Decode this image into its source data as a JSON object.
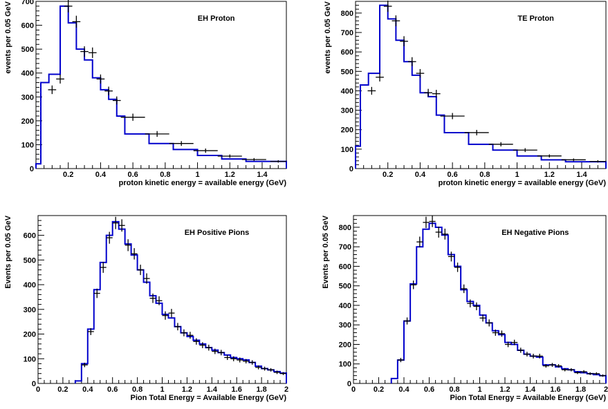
{
  "figure": {
    "background": "#ffffff",
    "model_color": "#0000cc",
    "data_color": "#000000"
  },
  "chart_data": [
    {
      "type": "histogram",
      "title": "EH Proton",
      "xlabel": "proton kinetic energy = available energy (GeV)",
      "ylabel": "events per 0.05 GeV",
      "xlim": [
        0.0,
        1.55
      ],
      "ylim": [
        0,
        700
      ],
      "xticks": [
        0.2,
        0.4,
        0.6,
        0.8,
        1.0,
        1.2,
        1.4
      ],
      "xtick_labels": [
        "0.2",
        "0.4",
        "0.6",
        "0.8",
        "1",
        "1.2",
        "1.4"
      ],
      "yticks": [
        0,
        100,
        200,
        300,
        400,
        500,
        600,
        700
      ],
      "ytick_labels": [
        "0",
        "100",
        "200",
        "300",
        "400",
        "500",
        "600",
        "700"
      ],
      "model_edges": [
        0.0,
        0.03,
        0.08,
        0.15,
        0.2,
        0.25,
        0.3,
        0.35,
        0.4,
        0.45,
        0.5,
        0.55,
        0.7,
        0.85,
        1.0,
        1.15,
        1.3,
        1.55
      ],
      "model_values": [
        20,
        360,
        395,
        680,
        610,
        500,
        455,
        380,
        330,
        290,
        220,
        145,
        105,
        80,
        55,
        40,
        30
      ],
      "data_points": [
        {
          "x": 0.1,
          "y": 330,
          "xerr": 0.025,
          "yerr": 18
        },
        {
          "x": 0.15,
          "y": 375,
          "xerr": 0.025,
          "yerr": 19
        },
        {
          "x": 0.2,
          "y": 680,
          "xerr": 0.025,
          "yerr": 26
        },
        {
          "x": 0.25,
          "y": 615,
          "xerr": 0.025,
          "yerr": 25
        },
        {
          "x": 0.3,
          "y": 490,
          "xerr": 0.025,
          "yerr": 22
        },
        {
          "x": 0.35,
          "y": 485,
          "xerr": 0.025,
          "yerr": 22
        },
        {
          "x": 0.4,
          "y": 375,
          "xerr": 0.025,
          "yerr": 19
        },
        {
          "x": 0.45,
          "y": 325,
          "xerr": 0.025,
          "yerr": 18
        },
        {
          "x": 0.5,
          "y": 285,
          "xerr": 0.025,
          "yerr": 17
        },
        {
          "x": 0.6,
          "y": 215,
          "xerr": 0.075,
          "yerr": 15
        },
        {
          "x": 0.75,
          "y": 145,
          "xerr": 0.075,
          "yerr": 12
        },
        {
          "x": 0.9,
          "y": 105,
          "xerr": 0.075,
          "yerr": 10
        },
        {
          "x": 1.05,
          "y": 75,
          "xerr": 0.075,
          "yerr": 9
        },
        {
          "x": 1.2,
          "y": 52,
          "xerr": 0.075,
          "yerr": 7
        },
        {
          "x": 1.35,
          "y": 38,
          "xerr": 0.075,
          "yerr": 6
        },
        {
          "x": 1.5,
          "y": 30,
          "xerr": 0.05,
          "yerr": 5
        }
      ]
    },
    {
      "type": "histogram",
      "title": "TE Proton",
      "xlabel": "proton kinetic energy = available energy (GeV)",
      "ylabel": "events per 0.05 GeV",
      "xlim": [
        0.0,
        1.55
      ],
      "ylim": [
        0,
        860
      ],
      "xticks": [
        0.2,
        0.4,
        0.6,
        0.8,
        1.0,
        1.2,
        1.4
      ],
      "xtick_labels": [
        "0.2",
        "0.4",
        "0.6",
        "0.8",
        "1",
        "1.2",
        "1.4"
      ],
      "yticks": [
        0,
        100,
        200,
        300,
        400,
        500,
        600,
        700,
        800
      ],
      "ytick_labels": [
        "0",
        "100",
        "200",
        "300",
        "400",
        "500",
        "600",
        "700",
        "800"
      ],
      "model_edges": [
        0.0,
        0.03,
        0.08,
        0.15,
        0.2,
        0.25,
        0.3,
        0.35,
        0.4,
        0.45,
        0.5,
        0.55,
        0.7,
        0.85,
        1.0,
        1.15,
        1.3,
        1.55
      ],
      "model_values": [
        115,
        430,
        490,
        840,
        770,
        660,
        550,
        480,
        390,
        370,
        275,
        185,
        125,
        95,
        65,
        45,
        35
      ],
      "data_points": [
        {
          "x": 0.1,
          "y": 400,
          "xerr": 0.025,
          "yerr": 20
        },
        {
          "x": 0.15,
          "y": 470,
          "xerr": 0.025,
          "yerr": 22
        },
        {
          "x": 0.2,
          "y": 835,
          "xerr": 0.025,
          "yerr": 29
        },
        {
          "x": 0.25,
          "y": 760,
          "xerr": 0.025,
          "yerr": 28
        },
        {
          "x": 0.3,
          "y": 655,
          "xerr": 0.025,
          "yerr": 26
        },
        {
          "x": 0.35,
          "y": 550,
          "xerr": 0.025,
          "yerr": 23
        },
        {
          "x": 0.4,
          "y": 490,
          "xerr": 0.025,
          "yerr": 22
        },
        {
          "x": 0.45,
          "y": 390,
          "xerr": 0.025,
          "yerr": 20
        },
        {
          "x": 0.5,
          "y": 385,
          "xerr": 0.025,
          "yerr": 20
        },
        {
          "x": 0.6,
          "y": 270,
          "xerr": 0.075,
          "yerr": 16
        },
        {
          "x": 0.75,
          "y": 185,
          "xerr": 0.075,
          "yerr": 14
        },
        {
          "x": 0.9,
          "y": 125,
          "xerr": 0.075,
          "yerr": 11
        },
        {
          "x": 1.05,
          "y": 95,
          "xerr": 0.075,
          "yerr": 10
        },
        {
          "x": 1.2,
          "y": 65,
          "xerr": 0.075,
          "yerr": 8
        },
        {
          "x": 1.35,
          "y": 45,
          "xerr": 0.075,
          "yerr": 7
        },
        {
          "x": 1.5,
          "y": 37,
          "xerr": 0.05,
          "yerr": 6
        }
      ]
    },
    {
      "type": "histogram",
      "title": "EH Positive Pions",
      "xlabel": "Pion Total Energy = Available Energy (GeV)",
      "ylabel": "Events per 0.05 GeV",
      "xlim": [
        0.0,
        2.0
      ],
      "ylim": [
        0,
        680
      ],
      "xticks": [
        0,
        0.2,
        0.4,
        0.6,
        0.8,
        1.0,
        1.2,
        1.4,
        1.6,
        1.8,
        2.0
      ],
      "xtick_labels": [
        "0",
        "0.2",
        "0.4",
        "0.6",
        "0.8",
        "1",
        "1.2",
        "1.4",
        "1.6",
        "1.8",
        "2"
      ],
      "yticks": [
        0,
        100,
        200,
        300,
        400,
        500,
        600
      ],
      "ytick_labels": [
        "0",
        "100",
        "200",
        "300",
        "400",
        "500",
        "600"
      ],
      "model_edges": [
        0.3,
        0.35,
        0.4,
        0.45,
        0.5,
        0.55,
        0.6,
        0.65,
        0.7,
        0.75,
        0.8,
        0.85,
        0.9,
        0.95,
        1.0,
        1.05,
        1.1,
        1.15,
        1.2,
        1.25,
        1.3,
        1.35,
        1.4,
        1.45,
        1.5,
        1.55,
        1.6,
        1.65,
        1.7,
        1.75,
        1.8,
        1.85,
        1.9,
        1.95,
        2.0
      ],
      "model_values": [
        10,
        80,
        220,
        380,
        490,
        600,
        655,
        625,
        565,
        520,
        460,
        410,
        355,
        325,
        280,
        265,
        230,
        205,
        190,
        175,
        160,
        145,
        135,
        125,
        115,
        105,
        100,
        95,
        85,
        70,
        60,
        55,
        48,
        42
      ],
      "data_points": [
        {
          "x": 0.375,
          "y": 75,
          "xerr": 0.025,
          "yerr": 9
        },
        {
          "x": 0.425,
          "y": 210,
          "xerr": 0.025,
          "yerr": 14
        },
        {
          "x": 0.475,
          "y": 365,
          "xerr": 0.025,
          "yerr": 19
        },
        {
          "x": 0.525,
          "y": 470,
          "xerr": 0.025,
          "yerr": 22
        },
        {
          "x": 0.575,
          "y": 590,
          "xerr": 0.025,
          "yerr": 24
        },
        {
          "x": 0.625,
          "y": 650,
          "xerr": 0.025,
          "yerr": 25
        },
        {
          "x": 0.675,
          "y": 640,
          "xerr": 0.025,
          "yerr": 25
        },
        {
          "x": 0.725,
          "y": 560,
          "xerr": 0.025,
          "yerr": 24
        },
        {
          "x": 0.775,
          "y": 525,
          "xerr": 0.025,
          "yerr": 23
        },
        {
          "x": 0.825,
          "y": 460,
          "xerr": 0.025,
          "yerr": 21
        },
        {
          "x": 0.875,
          "y": 425,
          "xerr": 0.025,
          "yerr": 21
        },
        {
          "x": 0.925,
          "y": 345,
          "xerr": 0.025,
          "yerr": 19
        },
        {
          "x": 0.975,
          "y": 335,
          "xerr": 0.025,
          "yerr": 18
        },
        {
          "x": 1.025,
          "y": 275,
          "xerr": 0.025,
          "yerr": 17
        },
        {
          "x": 1.075,
          "y": 285,
          "xerr": 0.025,
          "yerr": 17
        },
        {
          "x": 1.125,
          "y": 230,
          "xerr": 0.025,
          "yerr": 15
        },
        {
          "x": 1.175,
          "y": 205,
          "xerr": 0.025,
          "yerr": 14
        },
        {
          "x": 1.225,
          "y": 195,
          "xerr": 0.025,
          "yerr": 14
        },
        {
          "x": 1.275,
          "y": 170,
          "xerr": 0.025,
          "yerr": 13
        },
        {
          "x": 1.325,
          "y": 155,
          "xerr": 0.025,
          "yerr": 12
        },
        {
          "x": 1.375,
          "y": 145,
          "xerr": 0.025,
          "yerr": 12
        },
        {
          "x": 1.425,
          "y": 130,
          "xerr": 0.025,
          "yerr": 11
        },
        {
          "x": 1.475,
          "y": 125,
          "xerr": 0.025,
          "yerr": 11
        },
        {
          "x": 1.525,
          "y": 105,
          "xerr": 0.025,
          "yerr": 10
        },
        {
          "x": 1.575,
          "y": 100,
          "xerr": 0.025,
          "yerr": 10
        },
        {
          "x": 1.625,
          "y": 95,
          "xerr": 0.025,
          "yerr": 10
        },
        {
          "x": 1.675,
          "y": 90,
          "xerr": 0.025,
          "yerr": 9
        },
        {
          "x": 1.725,
          "y": 85,
          "xerr": 0.025,
          "yerr": 9
        },
        {
          "x": 1.775,
          "y": 65,
          "xerr": 0.025,
          "yerr": 8
        },
        {
          "x": 1.825,
          "y": 60,
          "xerr": 0.025,
          "yerr": 8
        },
        {
          "x": 1.875,
          "y": 55,
          "xerr": 0.025,
          "yerr": 7
        },
        {
          "x": 1.925,
          "y": 45,
          "xerr": 0.025,
          "yerr": 7
        },
        {
          "x": 1.975,
          "y": 40,
          "xerr": 0.025,
          "yerr": 6
        }
      ]
    },
    {
      "type": "histogram",
      "title": "EH Negative Pions",
      "xlabel": "Pion Total Energy = Available Energy (GeV)",
      "ylabel": "Events per 0.05 GeV",
      "xlim": [
        0.0,
        2.0
      ],
      "ylim": [
        0,
        860
      ],
      "xticks": [
        0,
        0.2,
        0.4,
        0.6,
        0.8,
        1.0,
        1.2,
        1.4,
        1.6,
        1.8,
        2.0
      ],
      "xtick_labels": [
        "0",
        "0.2",
        "0.4",
        "0.6",
        "0.8",
        "1",
        "1.2",
        "1.4",
        "1.6",
        "1.8",
        "2"
      ],
      "yticks": [
        0,
        100,
        200,
        300,
        400,
        500,
        600,
        700,
        800
      ],
      "ytick_labels": [
        "0",
        "100",
        "200",
        "300",
        "400",
        "500",
        "600",
        "700",
        "800"
      ],
      "model_edges": [
        0.3,
        0.35,
        0.4,
        0.45,
        0.5,
        0.55,
        0.6,
        0.65,
        0.7,
        0.75,
        0.8,
        0.85,
        0.9,
        0.95,
        1.0,
        1.05,
        1.1,
        1.15,
        1.2,
        1.25,
        1.3,
        1.35,
        1.4,
        1.45,
        1.5,
        1.55,
        1.6,
        1.65,
        1.7,
        1.75,
        1.8,
        1.85,
        1.9,
        1.95,
        2.0
      ],
      "model_values": [
        25,
        120,
        320,
        510,
        700,
        790,
        820,
        800,
        760,
        660,
        600,
        480,
        420,
        400,
        350,
        310,
        270,
        250,
        210,
        200,
        170,
        150,
        140,
        135,
        95,
        95,
        85,
        75,
        70,
        60,
        55,
        50,
        45,
        40
      ],
      "data_points": [
        {
          "x": 0.375,
          "y": 120,
          "xerr": 0.025,
          "yerr": 11
        },
        {
          "x": 0.425,
          "y": 320,
          "xerr": 0.025,
          "yerr": 18
        },
        {
          "x": 0.475,
          "y": 505,
          "xerr": 0.025,
          "yerr": 22
        },
        {
          "x": 0.525,
          "y": 725,
          "xerr": 0.025,
          "yerr": 27
        },
        {
          "x": 0.575,
          "y": 825,
          "xerr": 0.025,
          "yerr": 29
        },
        {
          "x": 0.625,
          "y": 830,
          "xerr": 0.025,
          "yerr": 29
        },
        {
          "x": 0.675,
          "y": 775,
          "xerr": 0.025,
          "yerr": 28
        },
        {
          "x": 0.725,
          "y": 765,
          "xerr": 0.025,
          "yerr": 28
        },
        {
          "x": 0.775,
          "y": 650,
          "xerr": 0.025,
          "yerr": 25
        },
        {
          "x": 0.825,
          "y": 595,
          "xerr": 0.025,
          "yerr": 24
        },
        {
          "x": 0.875,
          "y": 485,
          "xerr": 0.025,
          "yerr": 22
        },
        {
          "x": 0.925,
          "y": 410,
          "xerr": 0.025,
          "yerr": 20
        },
        {
          "x": 0.975,
          "y": 395,
          "xerr": 0.025,
          "yerr": 20
        },
        {
          "x": 1.025,
          "y": 335,
          "xerr": 0.025,
          "yerr": 18
        },
        {
          "x": 1.075,
          "y": 310,
          "xerr": 0.025,
          "yerr": 18
        },
        {
          "x": 1.125,
          "y": 260,
          "xerr": 0.025,
          "yerr": 16
        },
        {
          "x": 1.175,
          "y": 255,
          "xerr": 0.025,
          "yerr": 16
        },
        {
          "x": 1.225,
          "y": 200,
          "xerr": 0.025,
          "yerr": 14
        },
        {
          "x": 1.275,
          "y": 210,
          "xerr": 0.025,
          "yerr": 14
        },
        {
          "x": 1.325,
          "y": 170,
          "xerr": 0.025,
          "yerr": 13
        },
        {
          "x": 1.375,
          "y": 150,
          "xerr": 0.025,
          "yerr": 12
        },
        {
          "x": 1.425,
          "y": 140,
          "xerr": 0.025,
          "yerr": 12
        },
        {
          "x": 1.475,
          "y": 140,
          "xerr": 0.025,
          "yerr": 12
        },
        {
          "x": 1.525,
          "y": 90,
          "xerr": 0.025,
          "yerr": 9
        },
        {
          "x": 1.575,
          "y": 95,
          "xerr": 0.025,
          "yerr": 10
        },
        {
          "x": 1.625,
          "y": 90,
          "xerr": 0.025,
          "yerr": 9
        },
        {
          "x": 1.675,
          "y": 70,
          "xerr": 0.025,
          "yerr": 8
        },
        {
          "x": 1.725,
          "y": 70,
          "xerr": 0.025,
          "yerr": 8
        },
        {
          "x": 1.775,
          "y": 55,
          "xerr": 0.025,
          "yerr": 7
        },
        {
          "x": 1.825,
          "y": 60,
          "xerr": 0.025,
          "yerr": 8
        },
        {
          "x": 1.875,
          "y": 50,
          "xerr": 0.025,
          "yerr": 7
        },
        {
          "x": 1.925,
          "y": 50,
          "xerr": 0.025,
          "yerr": 7
        },
        {
          "x": 1.975,
          "y": 40,
          "xerr": 0.025,
          "yerr": 6
        }
      ]
    }
  ]
}
